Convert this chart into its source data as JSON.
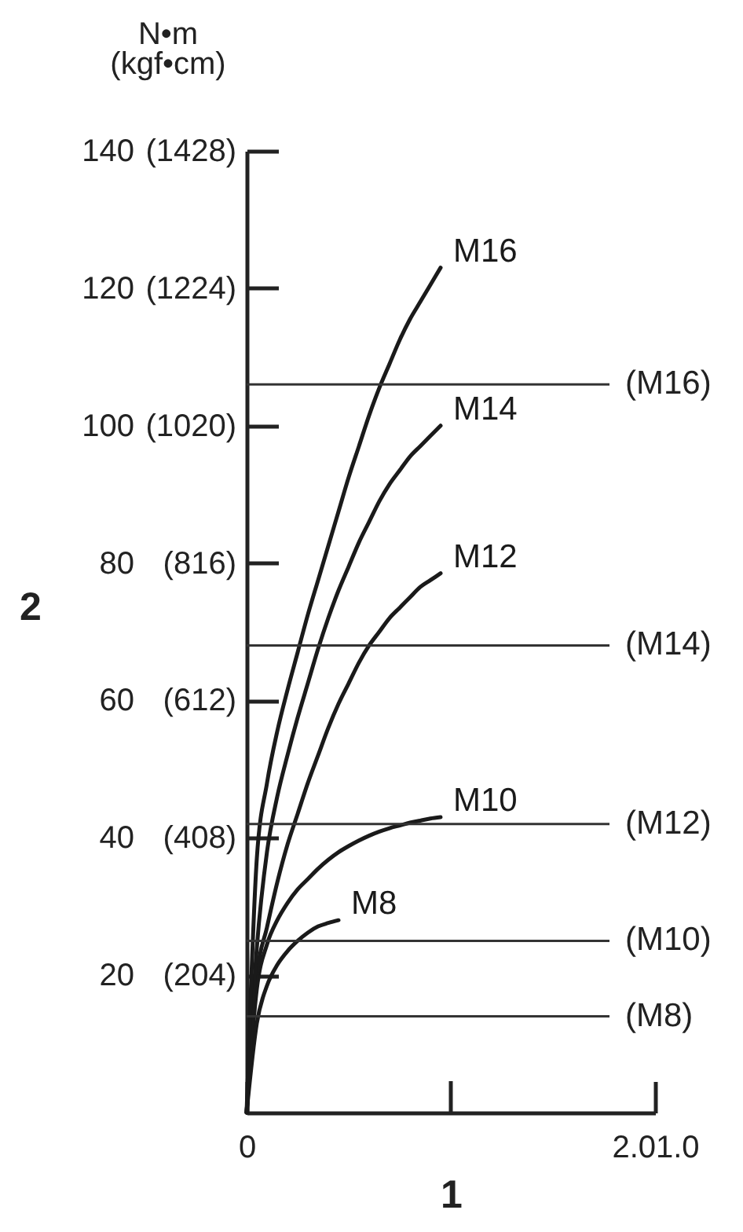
{
  "chart_data": {
    "type": "line",
    "xlabel": "1",
    "ylabel": "2",
    "annotations": [
      "N•m\n(kgf•cm)"
    ],
    "categories": [
      "0",
      null,
      null,
      null,
      null,
      null,
      null,
      null,
      null,
      null,
      null,
      null,
      null,
      null,
      null,
      null,
      null,
      null,
      null,
      null,
      null,
      null,
      null,
      null,
      null,
      null,
      null,
      null,
      null,
      null,
      null,
      null,
      null,
      null,
      null,
      null,
      null,
      null,
      null,
      null,
      "2.01.0"
    ],
    "ylim": [
      0,
      140
    ],
    "yticks": [
      20,
      40,
      60,
      80,
      100,
      120,
      140
    ],
    "y2lim": [
      0,
      1428
    ],
    "y2ticks": [
      {
        "value": 204,
        "label": "(204)"
      },
      {
        "value": 408,
        "label": "(408)"
      },
      {
        "value": 612,
        "label": "(612)"
      },
      {
        "value": 816,
        "label": "(816)"
      },
      {
        "value": 1020,
        "label": "(1020)"
      },
      {
        "value": 1224,
        "label": "(1224)"
      },
      {
        "value": 1428,
        "label": "(1428)"
      }
    ],
    "series": [
      {
        "name": "M8",
        "color": "#1a1a1a",
        "values": [
          0,
          13,
          18.5,
          21.5,
          23.5,
          25,
          26.2,
          27.1,
          27.6,
          28,
          null,
          null,
          null,
          null,
          null,
          null,
          null,
          null,
          null,
          null,
          null,
          null,
          null,
          null,
          null,
          null,
          null,
          null,
          null,
          null,
          null,
          null,
          null,
          null,
          null,
          null,
          null,
          null,
          null,
          null,
          null
        ]
      },
      {
        "name": "M10",
        "color": "#1a1a1a",
        "values": [
          0,
          18,
          24.5,
          28,
          30.5,
          32.5,
          34,
          35.5,
          36.8,
          37.9,
          38.8,
          39.6,
          40.3,
          40.9,
          41.4,
          41.8,
          42.2,
          42.5,
          42.8,
          43,
          null,
          null,
          null,
          null,
          null,
          null,
          null,
          null,
          null,
          null,
          null,
          null,
          null,
          null,
          null,
          null,
          null,
          null,
          null,
          null,
          null
        ]
      },
      {
        "name": "M12",
        "color": "#1a1a1a",
        "values": [
          0,
          20,
          27,
          33.5,
          39,
          43.5,
          48,
          52,
          56,
          59.5,
          62.5,
          65.5,
          68,
          70,
          72,
          73.5,
          75,
          76.5,
          77.5,
          78.5,
          null,
          null,
          null,
          null,
          null,
          null,
          null,
          null,
          null,
          null,
          null,
          null,
          null,
          null,
          null,
          null,
          null,
          null,
          null,
          null,
          null
        ]
      },
      {
        "name": "M14",
        "color": "#1a1a1a",
        "values": [
          0,
          24,
          38,
          46,
          52,
          57.5,
          62.5,
          67.5,
          72,
          76,
          79.5,
          83,
          86,
          89,
          91.5,
          93.5,
          95.5,
          97,
          98.5,
          100,
          null,
          null,
          null,
          null,
          null,
          null,
          null,
          null,
          null,
          null,
          null,
          null,
          null,
          null,
          null,
          null,
          null,
          null,
          null,
          null,
          null
        ]
      },
      {
        "name": "M16",
        "color": "#1a1a1a",
        "values": [
          0,
          37,
          48,
          55.5,
          61.5,
          67,
          72.5,
          77.5,
          82.5,
          87.5,
          92.5,
          97,
          101.5,
          105.5,
          109,
          112.5,
          115.5,
          118,
          120.5,
          123,
          null,
          null,
          null,
          null,
          null,
          null,
          null,
          null,
          null,
          null,
          null,
          null,
          null,
          null,
          null,
          null,
          null,
          null,
          null,
          null,
          null
        ]
      }
    ],
    "ref_lines": [
      {
        "axis": "y",
        "value": 106,
        "label": "(M16)",
        "color": "#333333"
      },
      {
        "axis": "y",
        "value": 68,
        "label": "(M14)",
        "color": "#333333"
      },
      {
        "axis": "y",
        "value": 42,
        "label": "(M12)",
        "color": "#333333"
      },
      {
        "axis": "y",
        "value": 25,
        "label": "(M10)",
        "color": "#333333"
      },
      {
        "axis": "y",
        "value": 14,
        "label": "(M8)",
        "color": "#333333"
      }
    ]
  }
}
